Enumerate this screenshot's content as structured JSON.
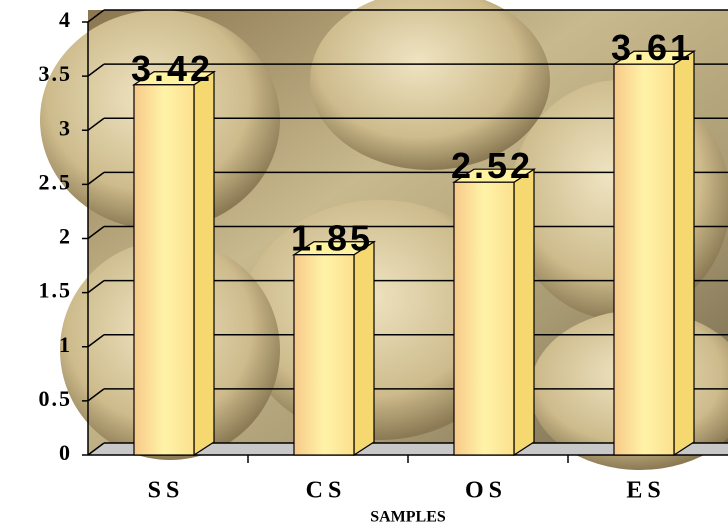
{
  "chart_data": {
    "type": "bar3d",
    "categories": [
      "SS",
      "CS",
      "OS",
      "ES"
    ],
    "values": [
      3.42,
      1.85,
      2.52,
      3.61
    ],
    "x_label": "SAMPLES",
    "ylim": [
      0,
      4
    ],
    "yticks": [
      0,
      0.5,
      1,
      1.5,
      2,
      2.5,
      3,
      3.5,
      4
    ],
    "grid": true,
    "color": "#fff2a0"
  }
}
